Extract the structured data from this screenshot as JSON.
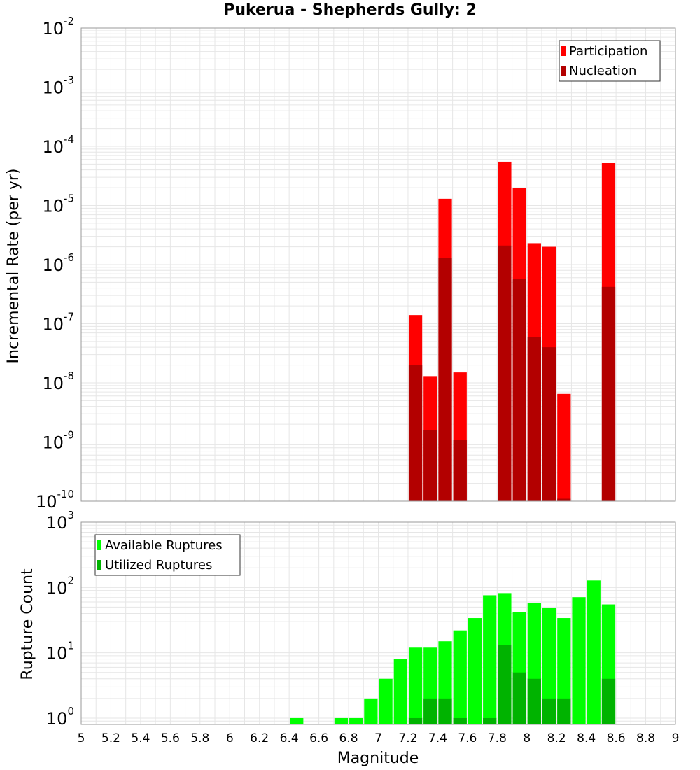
{
  "chart_data": [
    {
      "type": "bar",
      "title": "Pukerua - Shepherds Gully: 2",
      "ylabel": "Incremental Rate (per yr)",
      "yscale": "log",
      "ylim": [
        1e-10,
        0.01
      ],
      "xlim": [
        5,
        9
      ],
      "bar_width": 0.1,
      "grid": true,
      "legend_placement": "top-right",
      "x": [
        7.25,
        7.35,
        7.45,
        7.55,
        7.85,
        7.95,
        8.05,
        8.15,
        8.25,
        8.55
      ],
      "series": [
        {
          "name": "Participation",
          "color": "#ff0000",
          "values": [
            1.4e-07,
            1.3e-08,
            1.3e-05,
            1.5e-08,
            5.5e-05,
            2e-05,
            2.3e-06,
            2e-06,
            6.5e-09,
            5.2e-05
          ]
        },
        {
          "name": "Nucleation",
          "color": "#b30000",
          "values": [
            2e-08,
            1.6e-09,
            1.3e-06,
            1.1e-09,
            2.1e-06,
            5.8e-07,
            6e-08,
            4e-08,
            1.1e-10,
            4.2e-07
          ]
        }
      ]
    },
    {
      "type": "bar",
      "ylabel": "Rupture Count",
      "xlabel": "Magnitude",
      "yscale": "log",
      "ylim": [
        0.8,
        1000
      ],
      "xlim": [
        5,
        9
      ],
      "bar_width": 0.1,
      "grid": true,
      "legend_placement": "top-left",
      "x": [
        6.45,
        6.75,
        6.85,
        6.95,
        7.05,
        7.15,
        7.25,
        7.35,
        7.45,
        7.55,
        7.65,
        7.75,
        7.85,
        7.95,
        8.05,
        8.15,
        8.25,
        8.35,
        8.45,
        8.55
      ],
      "series": [
        {
          "name": "Available Ruptures",
          "color": "#00ff00",
          "values": [
            1,
            1,
            1,
            2,
            4,
            8,
            12,
            12,
            15,
            22,
            34,
            76,
            82,
            42,
            58,
            49,
            34,
            71,
            128,
            55
          ]
        },
        {
          "name": "Utilized Ruptures",
          "color": "#00b300",
          "values": [
            0,
            0,
            0,
            0,
            0,
            0,
            1,
            2,
            2,
            1,
            0,
            1,
            13,
            5,
            4,
            2,
            2,
            0,
            0,
            4
          ]
        }
      ]
    }
  ],
  "x_ticks": [
    "5",
    "5.2",
    "5.4",
    "5.6",
    "5.8",
    "6",
    "6.2",
    "6.4",
    "6.6",
    "6.8",
    "7",
    "7.2",
    "7.4",
    "7.6",
    "7.8",
    "8",
    "8.2",
    "8.4",
    "8.6",
    "8.8",
    "9"
  ],
  "rate_y_ticks": [
    {
      "base": "10",
      "exp": "-10",
      "value": 1e-10
    },
    {
      "base": "10",
      "exp": "-9",
      "value": 1e-09
    },
    {
      "base": "10",
      "exp": "-8",
      "value": 1e-08
    },
    {
      "base": "10",
      "exp": "-7",
      "value": 1e-07
    },
    {
      "base": "10",
      "exp": "-6",
      "value": 1e-06
    },
    {
      "base": "10",
      "exp": "-5",
      "value": 1e-05
    },
    {
      "base": "10",
      "exp": "-4",
      "value": 0.0001
    },
    {
      "base": "10",
      "exp": "-3",
      "value": 0.001
    },
    {
      "base": "10",
      "exp": "-2",
      "value": 0.01
    }
  ],
  "count_y_ticks": [
    {
      "base": "10",
      "exp": "0",
      "value": 1
    },
    {
      "base": "10",
      "exp": "1",
      "value": 10
    },
    {
      "base": "10",
      "exp": "2",
      "value": 100
    },
    {
      "base": "10",
      "exp": "3",
      "value": 1000
    }
  ],
  "colors": {
    "grid": "#e6e6e6",
    "frame": "#999999",
    "background": "#ffffff"
  }
}
